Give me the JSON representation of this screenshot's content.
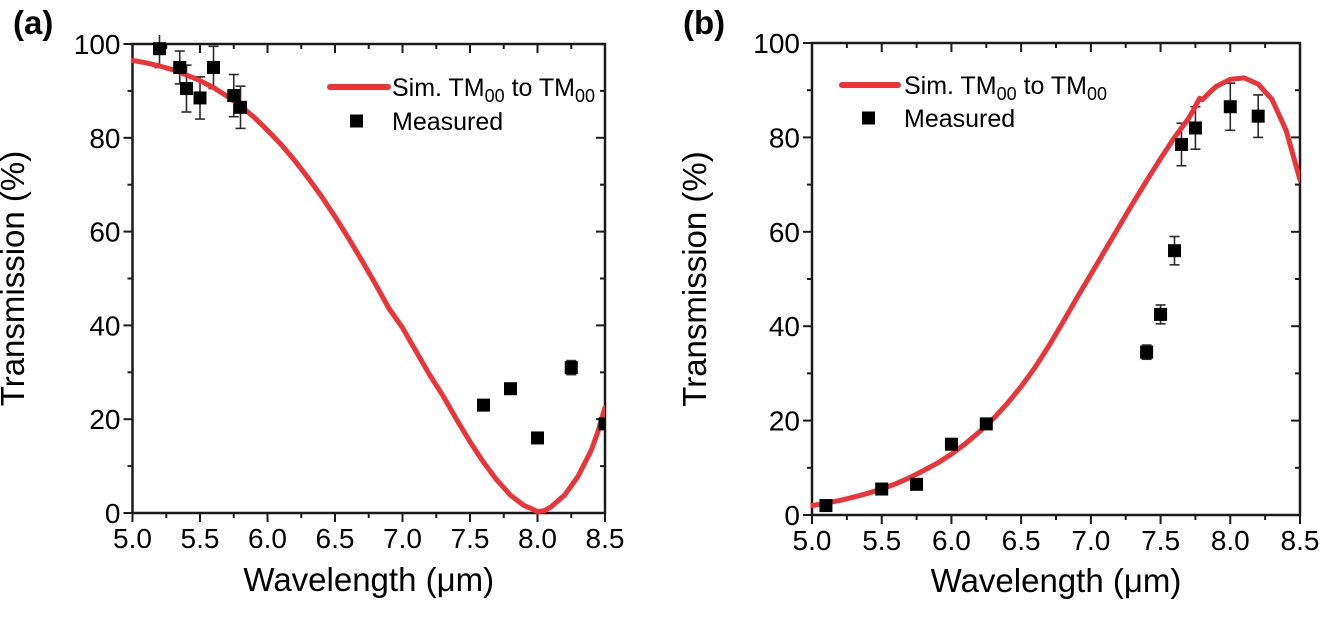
{
  "colors": {
    "sim_line": "#ED3338",
    "measured": "#000000",
    "axis": "#1A1A1A",
    "error_bar": "#2B2B2B",
    "background": "#FFFFFF"
  },
  "chart_data": [
    {
      "type": "line",
      "panel_label": "(a)",
      "xlabel": "Wavelength (μm)",
      "ylabel": "Transmission (%)",
      "xlim": [
        5.0,
        8.5
      ],
      "ylim": [
        0,
        100
      ],
      "x_tick_labels": [
        "5.0",
        "5.5",
        "6.0",
        "6.5",
        "7.0",
        "7.5",
        "8.0",
        "8.5"
      ],
      "y_tick_labels": [
        "0",
        "20",
        "40",
        "60",
        "80",
        "100"
      ],
      "x_minor_step": 0.25,
      "y_minor_step": 10,
      "grid": false,
      "legend_position": "top-right",
      "legend": [
        {
          "marker": "line",
          "label": "Sim. TM00 to TM00",
          "label_parts": [
            {
              "t": "Sim. TM"
            },
            {
              "t": "00",
              "sub": true
            },
            {
              "t": " to TM"
            },
            {
              "t": "00",
              "sub": true
            }
          ]
        },
        {
          "marker": "square",
          "label": "Measured",
          "label_parts": [
            {
              "t": "Measured"
            }
          ]
        }
      ],
      "series": [
        {
          "name": "Sim. TM00 to TM00",
          "type": "line",
          "color": "#ED3338",
          "x": [
            5.0,
            5.1,
            5.2,
            5.3,
            5.4,
            5.5,
            5.6,
            5.7,
            5.8,
            5.9,
            6.0,
            6.1,
            6.2,
            6.3,
            6.4,
            6.5,
            6.6,
            6.7,
            6.8,
            6.9,
            7.0,
            7.1,
            7.2,
            7.3,
            7.4,
            7.5,
            7.6,
            7.7,
            7.8,
            7.9,
            7.95,
            8.0,
            8.05,
            8.1,
            8.2,
            8.3,
            8.4,
            8.45,
            8.5
          ],
          "y": [
            96.5,
            96.0,
            95.3,
            94.5,
            93.4,
            92.2,
            90.7,
            88.9,
            86.8,
            84.4,
            81.6,
            78.6,
            75.2,
            71.5,
            67.5,
            63.2,
            58.6,
            53.8,
            48.8,
            43.6,
            39.5,
            34.5,
            29.5,
            25.0,
            20.0,
            15.2,
            10.8,
            7.0,
            3.8,
            1.6,
            1.0,
            0.3,
            0.5,
            1.3,
            3.8,
            7.8,
            13.5,
            17.5,
            22.5
          ]
        },
        {
          "name": "Measured",
          "type": "scatter",
          "color": "#000000",
          "points": [
            [
              5.2,
              99.0,
              4.0
            ],
            [
              5.35,
              95.0,
              3.5
            ],
            [
              5.4,
              90.5,
              5.0
            ],
            [
              5.5,
              88.5,
              4.5
            ],
            [
              5.6,
              95.0,
              4.5
            ],
            [
              5.75,
              89.0,
              4.5
            ],
            [
              5.8,
              86.5,
              4.5
            ],
            [
              7.6,
              23.0,
              0.8
            ],
            [
              7.8,
              26.5,
              1.0
            ],
            [
              8.0,
              16.0,
              0.6
            ],
            [
              8.25,
              31.0,
              1.5
            ],
            [
              8.5,
              19.0,
              1.0
            ]
          ]
        }
      ]
    },
    {
      "type": "line",
      "panel_label": "(b)",
      "xlabel": "Wavelength (μm)",
      "ylabel": "Transmission (%)",
      "xlim": [
        5.0,
        8.5
      ],
      "ylim": [
        0,
        100
      ],
      "x_tick_labels": [
        "5.0",
        "5.5",
        "6.0",
        "6.5",
        "7.0",
        "7.5",
        "8.0",
        "8.5"
      ],
      "y_tick_labels": [
        "0",
        "20",
        "40",
        "60",
        "80",
        "100"
      ],
      "x_minor_step": 0.25,
      "y_minor_step": 10,
      "grid": false,
      "legend_position": "top-left",
      "legend": [
        {
          "marker": "line",
          "label": "Sim. TM00 to TM00",
          "label_parts": [
            {
              "t": "Sim. TM"
            },
            {
              "t": "00",
              "sub": true
            },
            {
              "t": " to TM"
            },
            {
              "t": "00",
              "sub": true
            }
          ]
        },
        {
          "marker": "square",
          "label": "Measured",
          "label_parts": [
            {
              "t": "Measured"
            }
          ]
        }
      ],
      "series": [
        {
          "name": "Sim. TM00 to TM00",
          "type": "line",
          "color": "#ED3338",
          "x": [
            5.0,
            5.1,
            5.2,
            5.3,
            5.4,
            5.5,
            5.6,
            5.7,
            5.8,
            5.9,
            6.0,
            6.1,
            6.2,
            6.3,
            6.4,
            6.5,
            6.6,
            6.7,
            6.8,
            6.9,
            7.0,
            7.1,
            7.2,
            7.3,
            7.4,
            7.5,
            7.6,
            7.65,
            7.7,
            7.74,
            7.78,
            7.8,
            7.85,
            7.9,
            8.0,
            8.1,
            8.2,
            8.3,
            8.4,
            8.5
          ],
          "y": [
            2.0,
            2.5,
            3.1,
            3.8,
            4.6,
            5.5,
            6.6,
            7.9,
            9.4,
            11.0,
            12.9,
            15.1,
            17.6,
            20.4,
            23.6,
            27.2,
            31.3,
            35.9,
            40.9,
            46.0,
            51.0,
            56.0,
            61.0,
            66.0,
            70.8,
            75.5,
            80.0,
            82.0,
            84.0,
            86.0,
            88.3,
            88.0,
            89.5,
            90.8,
            92.3,
            92.6,
            91.3,
            88.0,
            81.5,
            71.0
          ]
        },
        {
          "name": "Measured",
          "type": "scatter",
          "color": "#000000",
          "points": [
            [
              5.1,
              2.0,
              0.5
            ],
            [
              5.5,
              5.5,
              0.6
            ],
            [
              5.75,
              6.5,
              0.8
            ],
            [
              6.0,
              15.0,
              1.0
            ],
            [
              6.25,
              19.3,
              1.0
            ],
            [
              7.4,
              34.5,
              1.5
            ],
            [
              7.5,
              42.5,
              2.0
            ],
            [
              7.6,
              56.0,
              3.0
            ],
            [
              7.65,
              78.5,
              4.5
            ],
            [
              7.75,
              82.0,
              4.5
            ],
            [
              8.0,
              86.5,
              5.0
            ],
            [
              8.2,
              84.5,
              4.5
            ]
          ]
        }
      ]
    }
  ]
}
